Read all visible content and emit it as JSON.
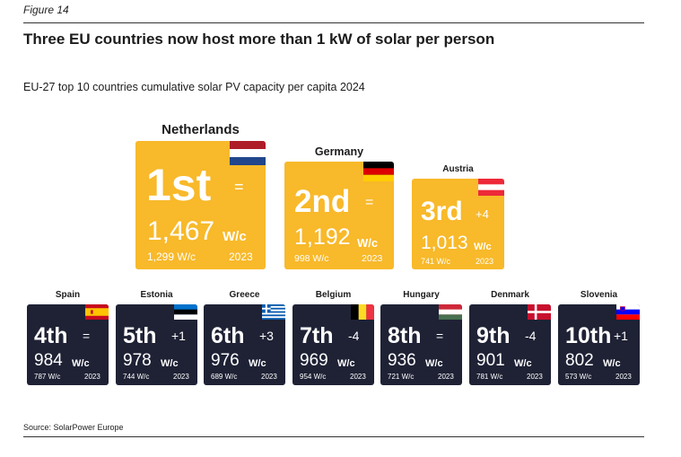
{
  "figure_label": "Figure 14",
  "title": "Three EU countries now host more than 1 kW of solar per person",
  "subtitle": "EU-27 top 10 countries cumulative solar PV capacity per capita 2024",
  "source": "Source: SolarPower Europe",
  "unit": "W/c",
  "prev_year": "2023",
  "colors": {
    "podium": "#f8b92a",
    "rest": "#1f2235",
    "text_light": "#ffffff"
  },
  "chart_data": {
    "type": "table",
    "title": "Three EU countries now host more than 1 kW of solar per person",
    "subtitle": "EU-27 top 10 countries cumulative solar PV capacity per capita 2024",
    "columns": [
      "rank",
      "country",
      "value_2024",
      "change",
      "value_2023"
    ],
    "rows": [
      {
        "rank": "1st",
        "country": "Netherlands",
        "value_2024": "1,467",
        "change": "=",
        "value_2023": "1,299",
        "flag": "nl-flag"
      },
      {
        "rank": "2nd",
        "country": "Germany",
        "value_2024": "1,192",
        "change": "=",
        "value_2023": "998",
        "flag": "de-flag"
      },
      {
        "rank": "3rd",
        "country": "Austria",
        "value_2024": "1,013",
        "change": "+4",
        "value_2023": "741",
        "flag": "at-flag"
      },
      {
        "rank": "4th",
        "country": "Spain",
        "value_2024": "984",
        "change": "=",
        "value_2023": "787",
        "flag": "es-flag"
      },
      {
        "rank": "5th",
        "country": "Estonia",
        "value_2024": "978",
        "change": "+1",
        "value_2023": "744",
        "flag": "ee-flag"
      },
      {
        "rank": "6th",
        "country": "Greece",
        "value_2024": "976",
        "change": "+3",
        "value_2023": "689",
        "flag": "gr-flag"
      },
      {
        "rank": "7th",
        "country": "Belgium",
        "value_2024": "969",
        "change": "-4",
        "value_2023": "954",
        "flag": "be-flag"
      },
      {
        "rank": "8th",
        "country": "Hungary",
        "value_2024": "936",
        "change": "=",
        "value_2023": "721",
        "flag": "hu-flag"
      },
      {
        "rank": "9th",
        "country": "Denmark",
        "value_2024": "901",
        "change": "-4",
        "value_2023": "781",
        "flag": "dk-flag"
      },
      {
        "rank": "10th",
        "country": "Slovenia",
        "value_2024": "802",
        "change": "+1",
        "value_2023": "573",
        "flag": "si-flag"
      }
    ]
  }
}
